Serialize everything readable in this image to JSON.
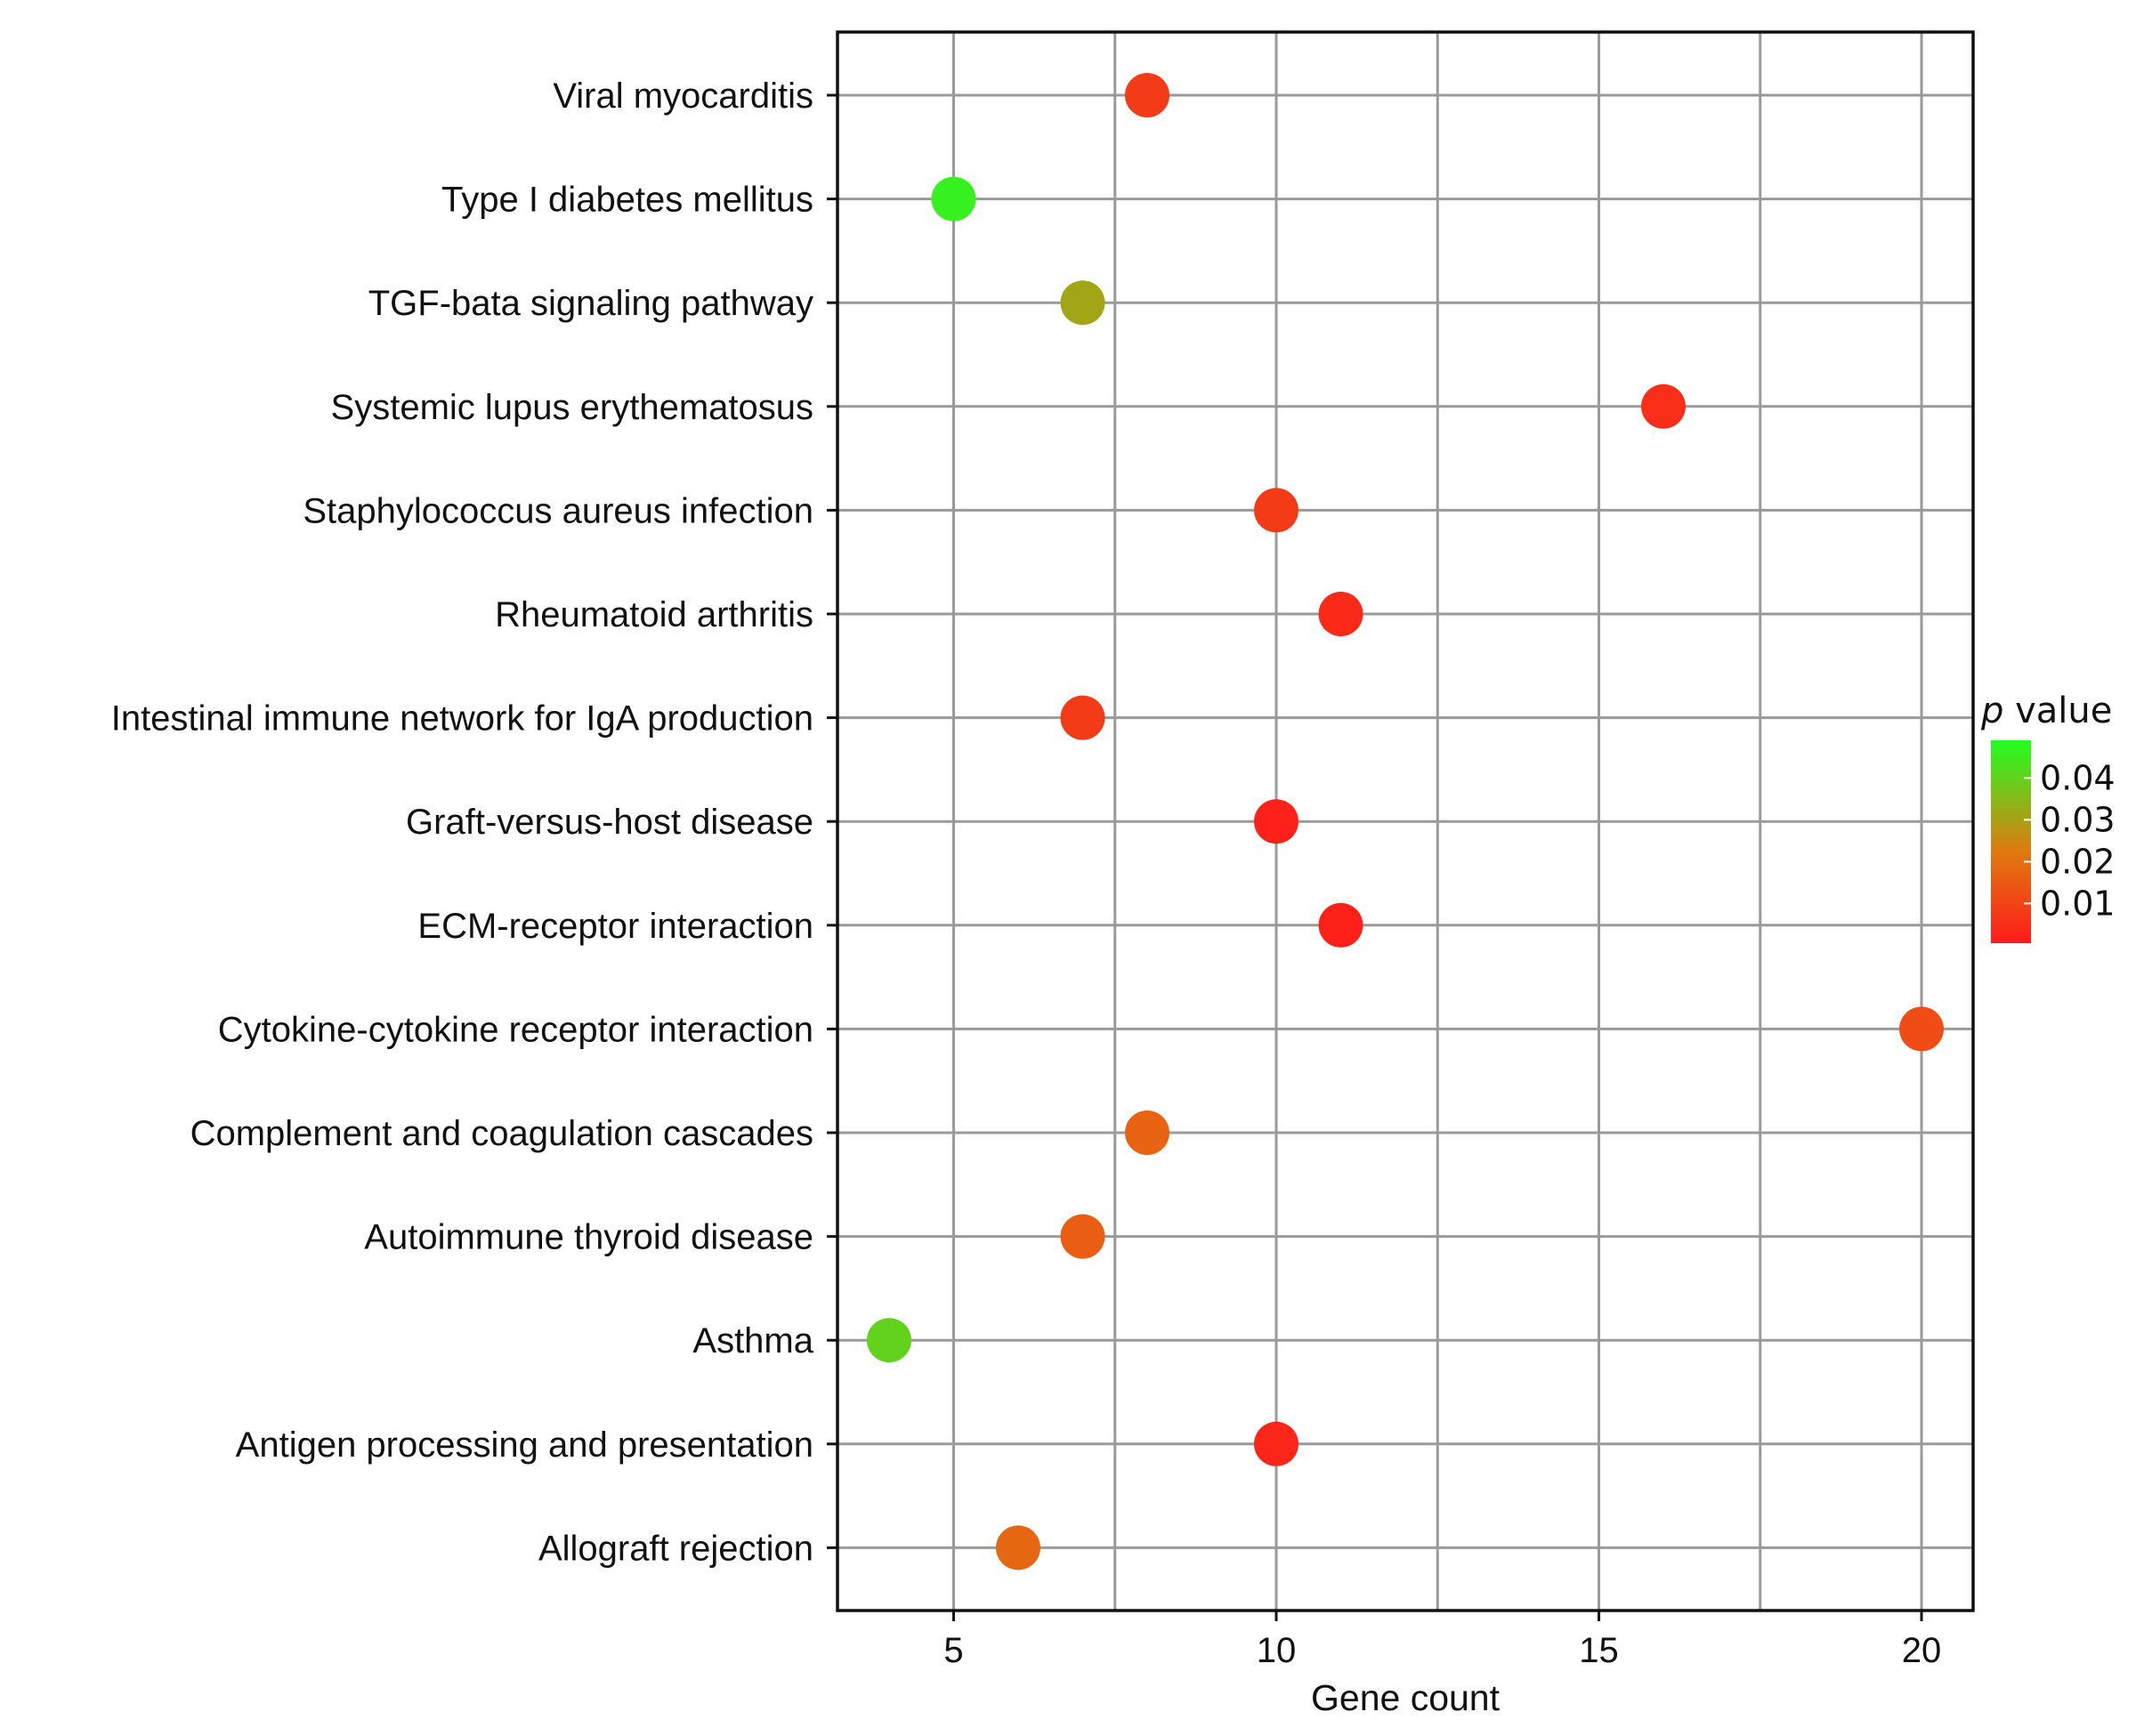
{
  "chart_data": {
    "type": "scatter",
    "title": "",
    "xlabel": "Gene count",
    "ylabel": "",
    "xlim": [
      3.2,
      20.8
    ],
    "xticks": [
      5,
      10,
      15,
      20
    ],
    "xgrid_minor": [
      7.5,
      12.5,
      17.5
    ],
    "grid": true,
    "categories": [
      "Viral myocarditis",
      "Type I diabetes mellitus",
      "TGF-bata signaling pathway",
      "Systemic lupus erythematosus",
      "Staphylococcus aureus infection",
      "Rheumatoid arthritis",
      "Intestinal immune network for IgA production",
      "Graft-versus-host disease",
      "ECM-receptor interaction",
      "Cytokine-cytokine receptor interaction",
      "Complement and coagulation cascades",
      "Autoimmune thyroid disease",
      "Asthma",
      "Antigen processing and presentation",
      "Allograft rejection"
    ],
    "gene_count": [
      8,
      5,
      7,
      16,
      10,
      11,
      7,
      10,
      11,
      20,
      8,
      7,
      4,
      10,
      6
    ],
    "p_value": [
      0.008,
      0.046,
      0.031,
      0.005,
      0.008,
      0.004,
      0.008,
      0.002,
      0.002,
      0.012,
      0.017,
      0.016,
      0.04,
      0.003,
      0.018
    ],
    "legend": {
      "title_italic": "p",
      "title_rest": " value",
      "ticks": [
        0.04,
        0.03,
        0.02,
        0.01
      ],
      "tick_labels": [
        "0.04",
        "0.03",
        "0.02",
        "0.01"
      ],
      "range": [
        0.0005,
        0.049
      ],
      "color_low": "#ff1a1a",
      "color_mid": "#e07a10",
      "color_high": "#22ff22",
      "placement": "right"
    }
  }
}
